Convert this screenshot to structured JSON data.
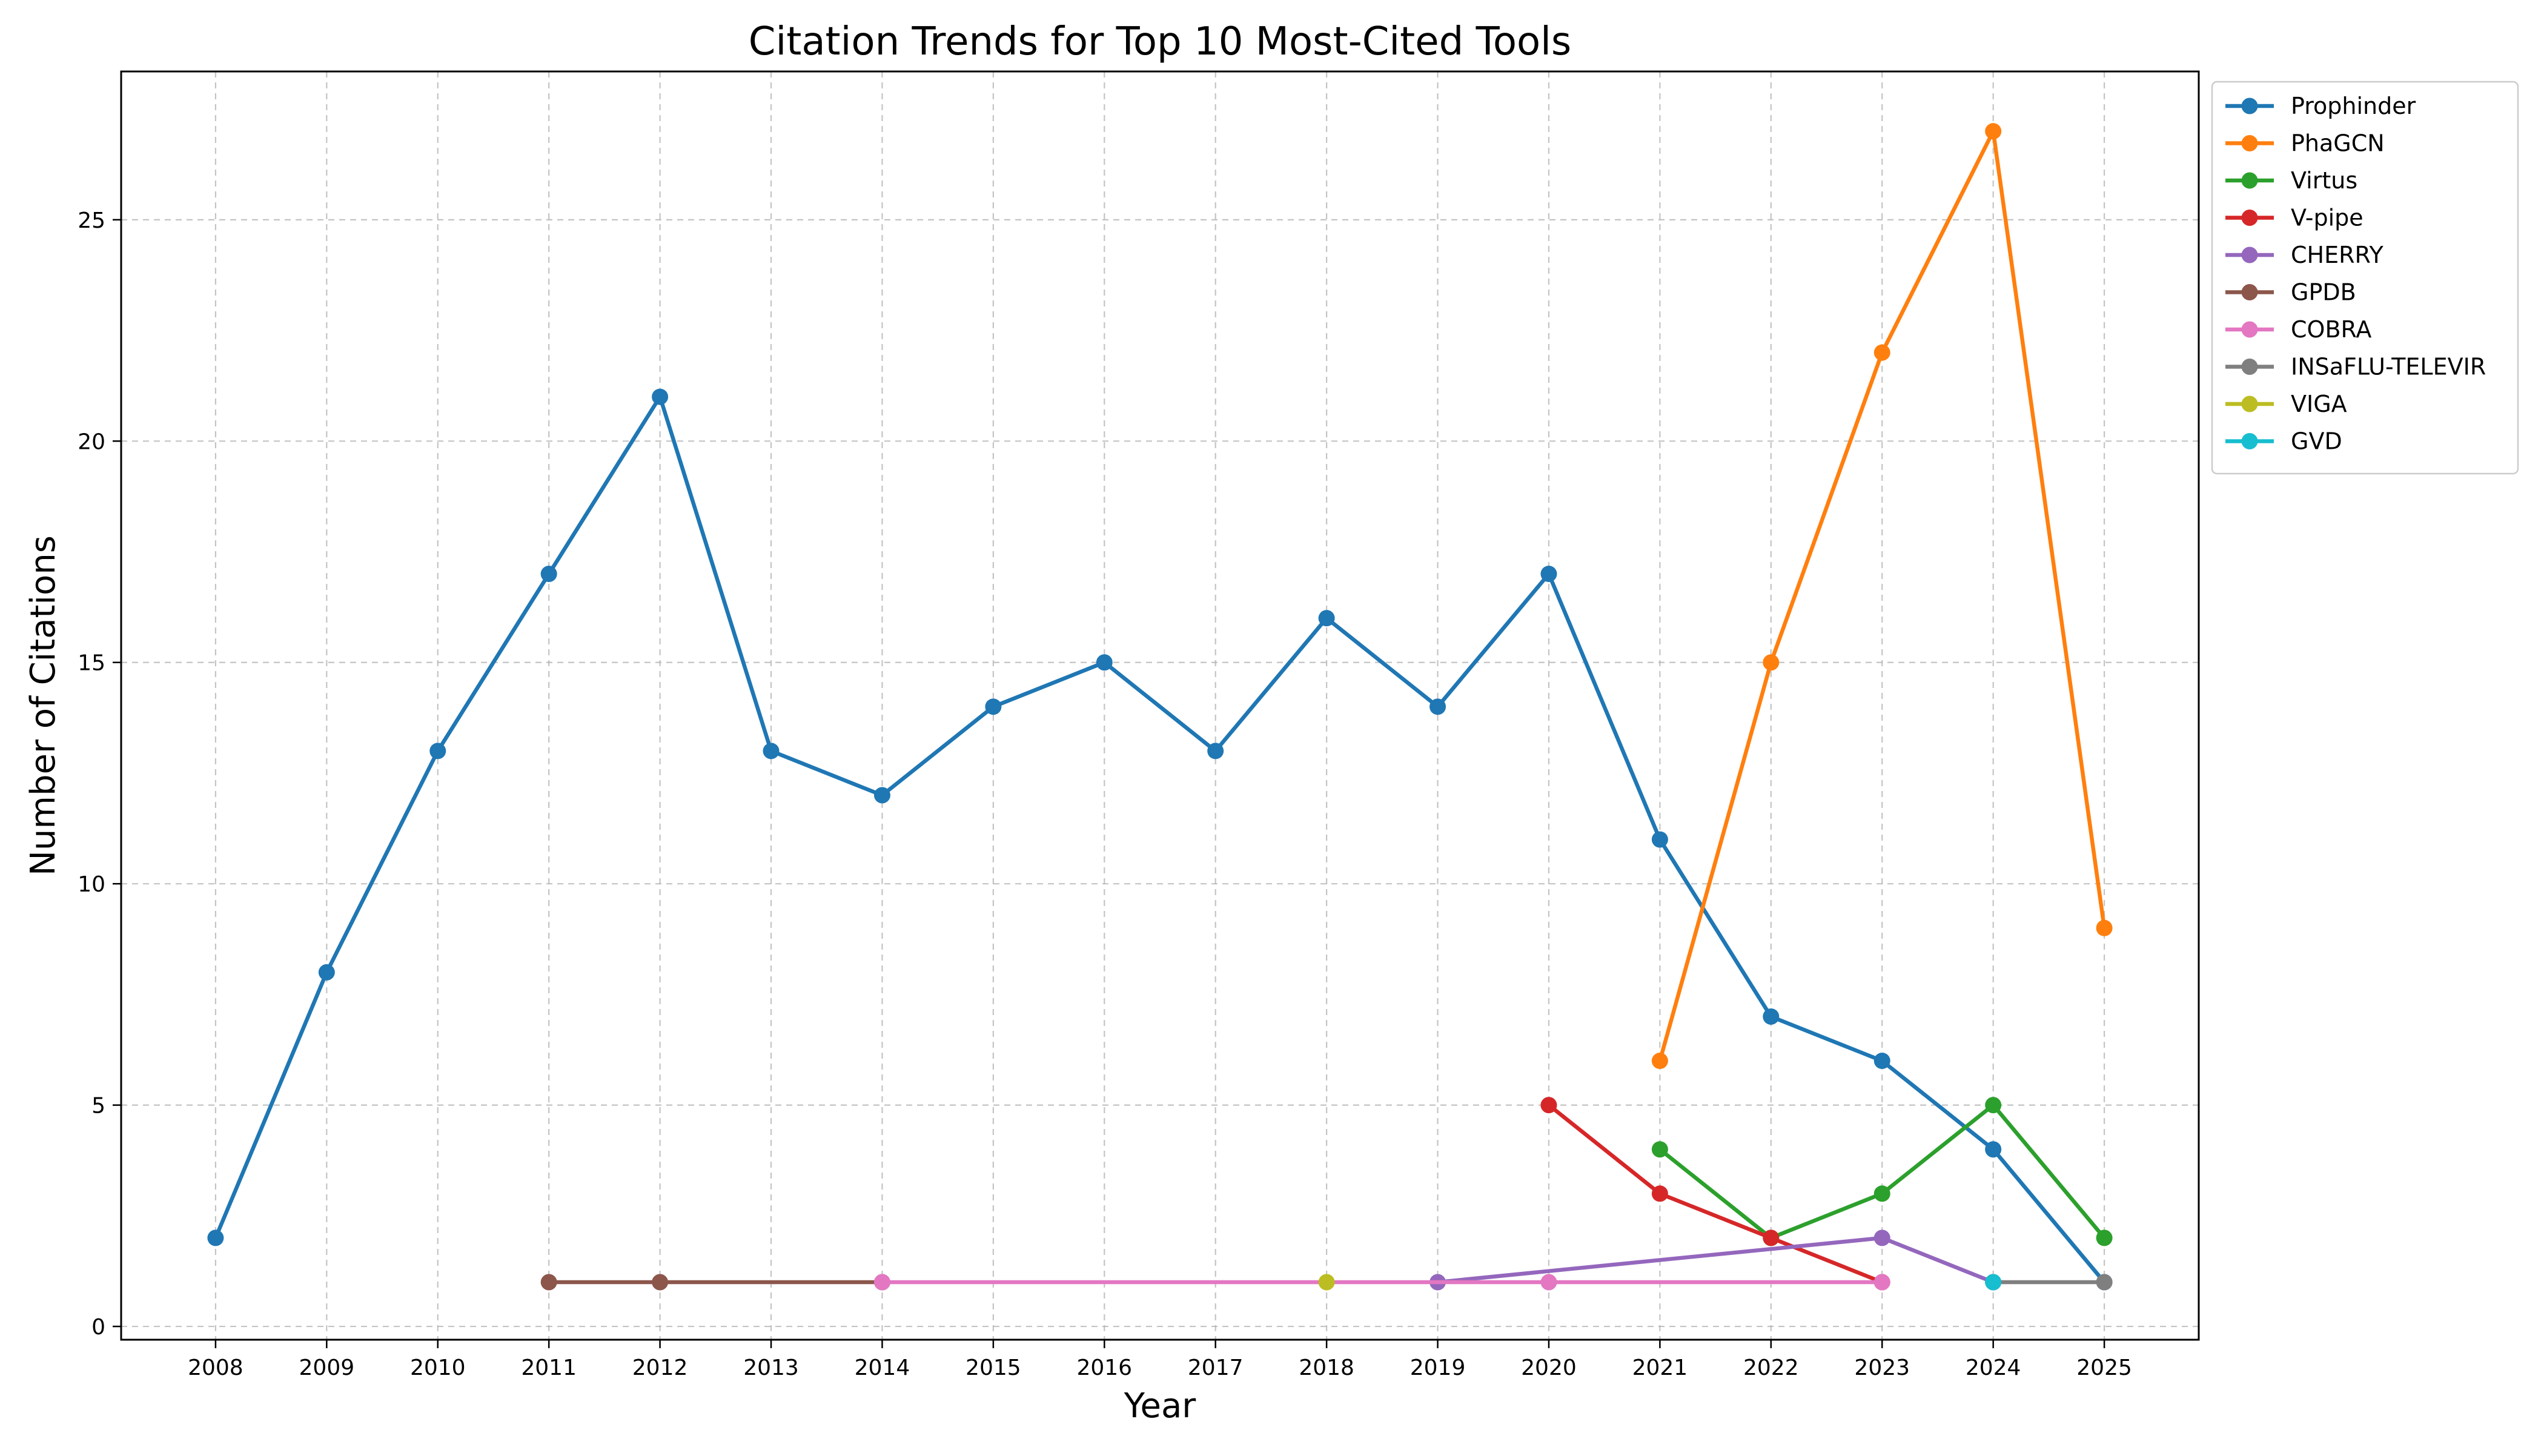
{
  "chart_data": {
    "type": "line",
    "title": "Citation Trends for Top 10 Most-Cited Tools",
    "xlabel": "Year",
    "ylabel": "Number of Citations",
    "x": [
      2008,
      2009,
      2010,
      2011,
      2012,
      2013,
      2014,
      2015,
      2016,
      2017,
      2018,
      2019,
      2020,
      2021,
      2022,
      2023,
      2024,
      2025
    ],
    "x_tick_labels": [
      "2008",
      "2009",
      "2010",
      "2011",
      "2012",
      "2013",
      "2014",
      "2015",
      "2016",
      "2017",
      "2018",
      "2019",
      "2020",
      "2021",
      "2022",
      "2023",
      "2024",
      "2025"
    ],
    "xlim": [
      2007.15,
      2025.85
    ],
    "ylim": [
      -0.3,
      28.35
    ],
    "y_ticks": [
      0,
      5,
      10,
      15,
      20,
      25
    ],
    "y_tick_labels": [
      "0",
      "5",
      "10",
      "15",
      "20",
      "25"
    ],
    "grid": true,
    "legend_position": "outside top-right",
    "series": [
      {
        "name": "Prophinder",
        "color": "#1f77b4",
        "points": [
          [
            2008,
            2
          ],
          [
            2009,
            8
          ],
          [
            2010,
            13
          ],
          [
            2011,
            17
          ],
          [
            2012,
            21
          ],
          [
            2013,
            13
          ],
          [
            2014,
            12
          ],
          [
            2015,
            14
          ],
          [
            2016,
            15
          ],
          [
            2017,
            13
          ],
          [
            2018,
            16
          ],
          [
            2019,
            14
          ],
          [
            2020,
            17
          ],
          [
            2021,
            11
          ],
          [
            2022,
            7
          ],
          [
            2023,
            6
          ],
          [
            2024,
            4
          ],
          [
            2025,
            1
          ]
        ]
      },
      {
        "name": "PhaGCN",
        "color": "#ff7f0e",
        "points": [
          [
            2021,
            6
          ],
          [
            2022,
            15
          ],
          [
            2023,
            22
          ],
          [
            2024,
            27
          ],
          [
            2025,
            9
          ]
        ]
      },
      {
        "name": "Virtus",
        "color": "#2ca02c",
        "points": [
          [
            2021,
            4
          ],
          [
            2022,
            2
          ],
          [
            2023,
            3
          ],
          [
            2024,
            5
          ],
          [
            2025,
            2
          ]
        ]
      },
      {
        "name": "V-pipe",
        "color": "#d62728",
        "points": [
          [
            2020,
            5
          ],
          [
            2021,
            3
          ],
          [
            2022,
            2
          ],
          [
            2023,
            1
          ]
        ]
      },
      {
        "name": "CHERRY",
        "color": "#9467bd",
        "points": [
          [
            2019,
            1
          ],
          [
            2023,
            2
          ],
          [
            2024,
            1
          ]
        ]
      },
      {
        "name": "GPDB",
        "color": "#8c564b",
        "points": [
          [
            2011,
            1
          ],
          [
            2012,
            1
          ],
          [
            2014,
            1
          ]
        ]
      },
      {
        "name": "COBRA",
        "color": "#e377c2",
        "points": [
          [
            2014,
            1
          ],
          [
            2020,
            1
          ],
          [
            2023,
            1
          ]
        ]
      },
      {
        "name": "INSaFLU-TELEVIR",
        "color": "#7f7f7f",
        "points": [
          [
            2024,
            1
          ],
          [
            2025,
            1
          ]
        ]
      },
      {
        "name": "VIGA",
        "color": "#bcbd22",
        "points": [
          [
            2018,
            1
          ]
        ]
      },
      {
        "name": "GVD",
        "color": "#17becf",
        "points": [
          [
            2024,
            1
          ]
        ]
      }
    ]
  }
}
